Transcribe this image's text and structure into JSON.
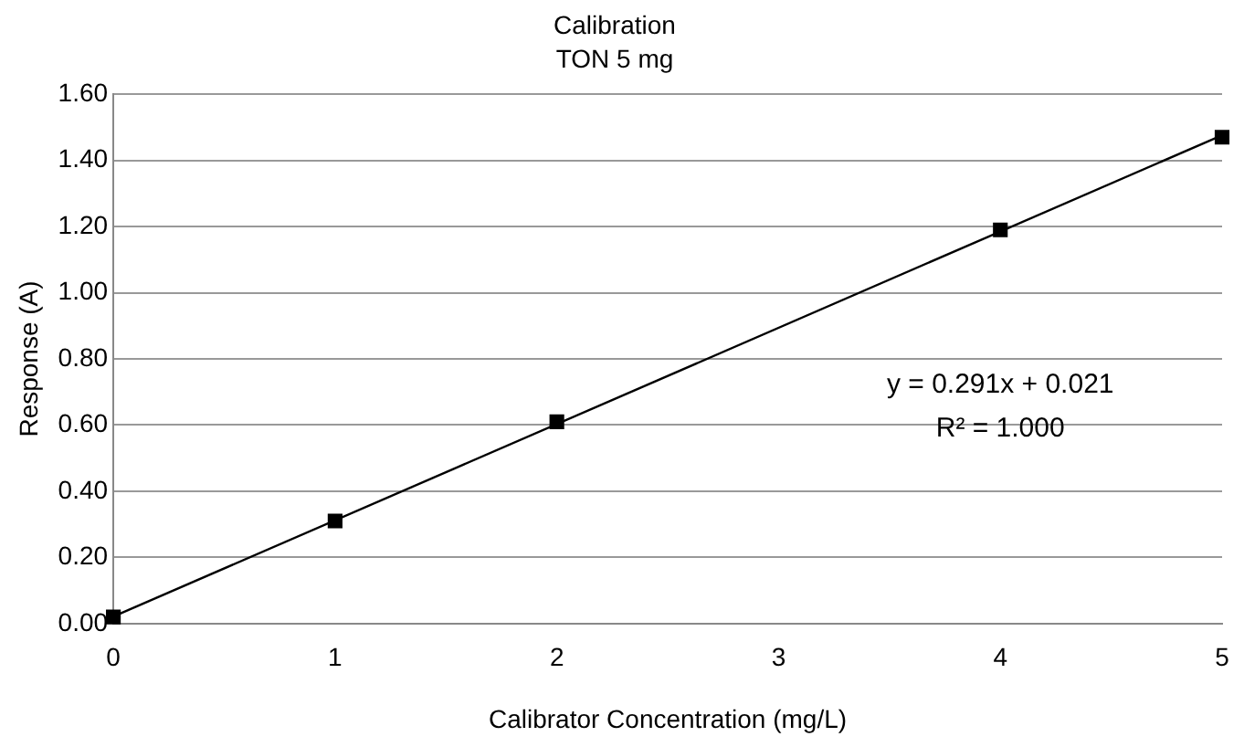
{
  "chart_data": {
    "type": "scatter",
    "title": "Calibration",
    "subtitle": "TON 5 mg",
    "xlabel": "Calibrator Concentration (mg/L)",
    "ylabel": "Response (A)",
    "xlim": [
      0,
      5
    ],
    "xticks": [
      0,
      1,
      2,
      3,
      4,
      5
    ],
    "ylim": [
      0,
      1.6
    ],
    "yticks": [
      {
        "value": 0,
        "label": "0.00"
      },
      {
        "value": 0.2,
        "label": "0.20"
      },
      {
        "value": 0.4,
        "label": "0.40"
      },
      {
        "value": 0.6,
        "label": "0.60"
      },
      {
        "value": 0.8,
        "label": "0.80"
      },
      {
        "value": 1,
        "label": "1.00"
      },
      {
        "value": 1.2,
        "label": "1.20"
      },
      {
        "value": 1.4,
        "label": "1.40"
      },
      {
        "value": 1.6,
        "label": "1.60"
      }
    ],
    "grid": "y",
    "legend": false,
    "series": [
      {
        "type": "scatter",
        "color": "#000000",
        "marker": "square",
        "x": [
          0,
          1,
          2,
          4,
          5
        ],
        "values": [
          0.02,
          0.31,
          0.61,
          1.19,
          1.47
        ]
      },
      {
        "type": "line",
        "color": "#000000",
        "marker": "none",
        "line_style": "solid",
        "x": [
          0,
          5
        ],
        "values": [
          0.021,
          1.476
        ]
      }
    ],
    "annotations": [
      "y = 0.291x + 0.021",
      "R² = 1.000"
    ]
  }
}
